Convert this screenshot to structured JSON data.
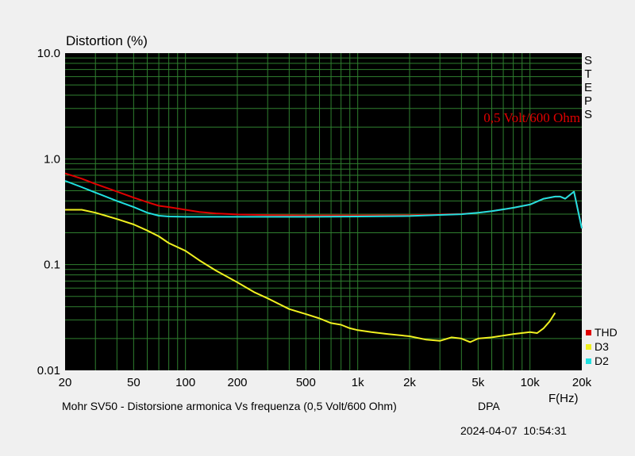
{
  "chart_data": {
    "type": "line",
    "title": "Distortion (%)",
    "xlabel": "F(Hz)",
    "ylabel": "Distortion (%)",
    "xscale": "log",
    "yscale": "log",
    "xlim": [
      20,
      20000
    ],
    "ylim": [
      0.01,
      10.0
    ],
    "grid": true,
    "x_tick_labels": [
      {
        "v": 20,
        "t": "20"
      },
      {
        "v": 50,
        "t": "50"
      },
      {
        "v": 100,
        "t": "100"
      },
      {
        "v": 200,
        "t": "200"
      },
      {
        "v": 500,
        "t": "500"
      },
      {
        "v": 1000,
        "t": "1k"
      },
      {
        "v": 2000,
        "t": "2k"
      },
      {
        "v": 5000,
        "t": "5k"
      },
      {
        "v": 10000,
        "t": "10k"
      },
      {
        "v": 20000,
        "t": "20k"
      }
    ],
    "y_tick_labels": [
      {
        "v": 10,
        "t": "10.0"
      },
      {
        "v": 1,
        "t": "1.0"
      },
      {
        "v": 0.1,
        "t": "0.1"
      },
      {
        "v": 0.01,
        "t": "0.01"
      }
    ],
    "steps_label": [
      "S",
      "T",
      "E",
      "P",
      "S"
    ],
    "annotation": "0,5 Volt/600 Ohm",
    "legend_position": "bottom-right",
    "series": [
      {
        "name": "THD",
        "color": "#e00000",
        "points": [
          [
            20,
            0.73
          ],
          [
            25,
            0.65
          ],
          [
            30,
            0.58
          ],
          [
            40,
            0.49
          ],
          [
            50,
            0.43
          ],
          [
            60,
            0.39
          ],
          [
            70,
            0.36
          ],
          [
            80,
            0.35
          ],
          [
            100,
            0.33
          ],
          [
            120,
            0.315
          ],
          [
            150,
            0.305
          ],
          [
            200,
            0.298
          ],
          [
            300,
            0.294
          ],
          [
            500,
            0.292
          ],
          [
            1000,
            0.292
          ],
          [
            2000,
            0.293
          ],
          [
            3000,
            0.298
          ],
          [
            4000,
            0.302
          ],
          [
            5000,
            0.31
          ],
          [
            6000,
            0.32
          ],
          [
            8000,
            0.345
          ],
          [
            10000,
            0.37
          ],
          [
            12000,
            0.42
          ],
          [
            14000,
            0.44
          ],
          [
            15000,
            0.44
          ],
          [
            16000,
            0.42
          ],
          [
            18000,
            0.49
          ],
          [
            20000,
            0.22
          ]
        ]
      },
      {
        "name": "D3",
        "color": "#f0f020",
        "points": [
          [
            20,
            0.33
          ],
          [
            25,
            0.33
          ],
          [
            30,
            0.31
          ],
          [
            40,
            0.27
          ],
          [
            50,
            0.24
          ],
          [
            60,
            0.21
          ],
          [
            70,
            0.185
          ],
          [
            80,
            0.16
          ],
          [
            100,
            0.135
          ],
          [
            120,
            0.11
          ],
          [
            150,
            0.088
          ],
          [
            200,
            0.068
          ],
          [
            250,
            0.055
          ],
          [
            300,
            0.048
          ],
          [
            400,
            0.038
          ],
          [
            500,
            0.034
          ],
          [
            600,
            0.031
          ],
          [
            700,
            0.028
          ],
          [
            800,
            0.027
          ],
          [
            900,
            0.025
          ],
          [
            1000,
            0.024
          ],
          [
            1200,
            0.023
          ],
          [
            1500,
            0.022
          ],
          [
            2000,
            0.021
          ],
          [
            2500,
            0.0195
          ],
          [
            3000,
            0.019
          ],
          [
            3500,
            0.0205
          ],
          [
            4000,
            0.02
          ],
          [
            4500,
            0.0185
          ],
          [
            5000,
            0.02
          ],
          [
            6000,
            0.0205
          ],
          [
            8000,
            0.022
          ],
          [
            10000,
            0.023
          ],
          [
            11000,
            0.0225
          ],
          [
            12000,
            0.025
          ],
          [
            13000,
            0.029
          ],
          [
            14000,
            0.035
          ]
        ]
      },
      {
        "name": "D2",
        "color": "#20e0e0",
        "points": [
          [
            20,
            0.62
          ],
          [
            25,
            0.54
          ],
          [
            30,
            0.48
          ],
          [
            40,
            0.4
          ],
          [
            50,
            0.35
          ],
          [
            60,
            0.31
          ],
          [
            70,
            0.29
          ],
          [
            80,
            0.285
          ],
          [
            100,
            0.283
          ],
          [
            150,
            0.283
          ],
          [
            200,
            0.283
          ],
          [
            300,
            0.283
          ],
          [
            500,
            0.283
          ],
          [
            1000,
            0.285
          ],
          [
            2000,
            0.288
          ],
          [
            3000,
            0.295
          ],
          [
            4000,
            0.3
          ],
          [
            5000,
            0.31
          ],
          [
            6000,
            0.32
          ],
          [
            8000,
            0.345
          ],
          [
            10000,
            0.37
          ],
          [
            12000,
            0.42
          ],
          [
            14000,
            0.44
          ],
          [
            15000,
            0.44
          ],
          [
            16000,
            0.42
          ],
          [
            18000,
            0.49
          ],
          [
            20000,
            0.22
          ]
        ]
      }
    ]
  },
  "footer": {
    "caption": "Mohr SV50 - Distorsione armonica Vs frequenza (0,5 Volt/600 Ohm)",
    "brand": "DPA",
    "timestamp": "2024-04-07  10:54:31"
  }
}
